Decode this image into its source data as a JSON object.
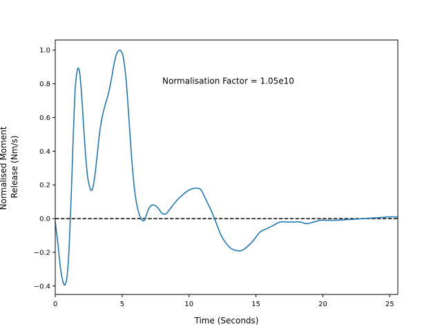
{
  "chart_data": {
    "type": "line",
    "title": "",
    "xlabel": "Time (Seconds)",
    "ylabel_lines": [
      "Normalised Moment",
      "Release (Nm/s)"
    ],
    "xlim": [
      0,
      25.6
    ],
    "ylim": [
      -0.45,
      1.06
    ],
    "x_ticks": [
      0,
      5,
      10,
      15,
      20,
      25
    ],
    "x_tick_labels": [
      "0",
      "5",
      "10",
      "15",
      "20",
      "25"
    ],
    "y_ticks": [
      -0.4,
      -0.2,
      0.0,
      0.2,
      0.4,
      0.6,
      0.8,
      1.0
    ],
    "y_tick_labels": [
      "−0.4",
      "−0.2",
      "0.0",
      "0.2",
      "0.4",
      "0.6",
      "0.8",
      "1.0"
    ],
    "grid": false,
    "annotation": {
      "text": "Normalisation Factor = 1.05e10",
      "x": 8.0,
      "y": 0.82
    },
    "reference_line": {
      "y": 0.0,
      "style": "dashed",
      "color": "#000000"
    },
    "series": [
      {
        "color": "#1f77b4",
        "x": [
          0,
          0.2,
          0.4,
          0.6,
          0.75,
          0.9,
          1.05,
          1.2,
          1.35,
          1.5,
          1.65,
          1.75,
          1.85,
          2.0,
          2.2,
          2.4,
          2.6,
          2.75,
          2.9,
          3.1,
          3.3,
          3.5,
          3.75,
          4.0,
          4.2,
          4.4,
          4.6,
          4.8,
          4.95,
          5.1,
          5.3,
          5.5,
          5.7,
          5.9,
          6.1,
          6.3,
          6.5,
          6.65,
          6.8,
          7.0,
          7.2,
          7.4,
          7.6,
          7.8,
          8.0,
          8.3,
          8.6,
          9.0,
          9.5,
          10.0,
          10.4,
          10.7,
          10.9,
          11.1,
          11.4,
          11.7,
          12.0,
          12.4,
          12.8,
          13.2,
          13.6,
          13.9,
          14.3,
          14.8,
          15.3,
          15.8,
          16.3,
          16.8,
          17.3,
          17.8,
          18.3,
          18.8,
          19.3,
          19.8,
          20.3,
          21.0,
          22.0,
          23.0,
          24.0,
          25.0,
          25.6
        ],
        "y": [
          -0.02,
          -0.15,
          -0.3,
          -0.38,
          -0.39,
          -0.33,
          -0.15,
          0.15,
          0.5,
          0.78,
          0.88,
          0.89,
          0.85,
          0.7,
          0.45,
          0.26,
          0.18,
          0.17,
          0.22,
          0.35,
          0.5,
          0.6,
          0.68,
          0.75,
          0.83,
          0.92,
          0.98,
          1.0,
          0.99,
          0.95,
          0.82,
          0.6,
          0.37,
          0.19,
          0.08,
          0.02,
          -0.01,
          -0.01,
          0.02,
          0.06,
          0.08,
          0.08,
          0.07,
          0.05,
          0.03,
          0.03,
          0.06,
          0.1,
          0.14,
          0.17,
          0.18,
          0.18,
          0.17,
          0.14,
          0.09,
          0.04,
          -0.02,
          -0.1,
          -0.15,
          -0.18,
          -0.19,
          -0.19,
          -0.17,
          -0.13,
          -0.08,
          -0.06,
          -0.04,
          -0.02,
          -0.02,
          -0.02,
          -0.02,
          -0.03,
          -0.02,
          -0.01,
          -0.01,
          -0.01,
          -0.005,
          0.0,
          0.005,
          0.01,
          0.01
        ]
      }
    ]
  }
}
